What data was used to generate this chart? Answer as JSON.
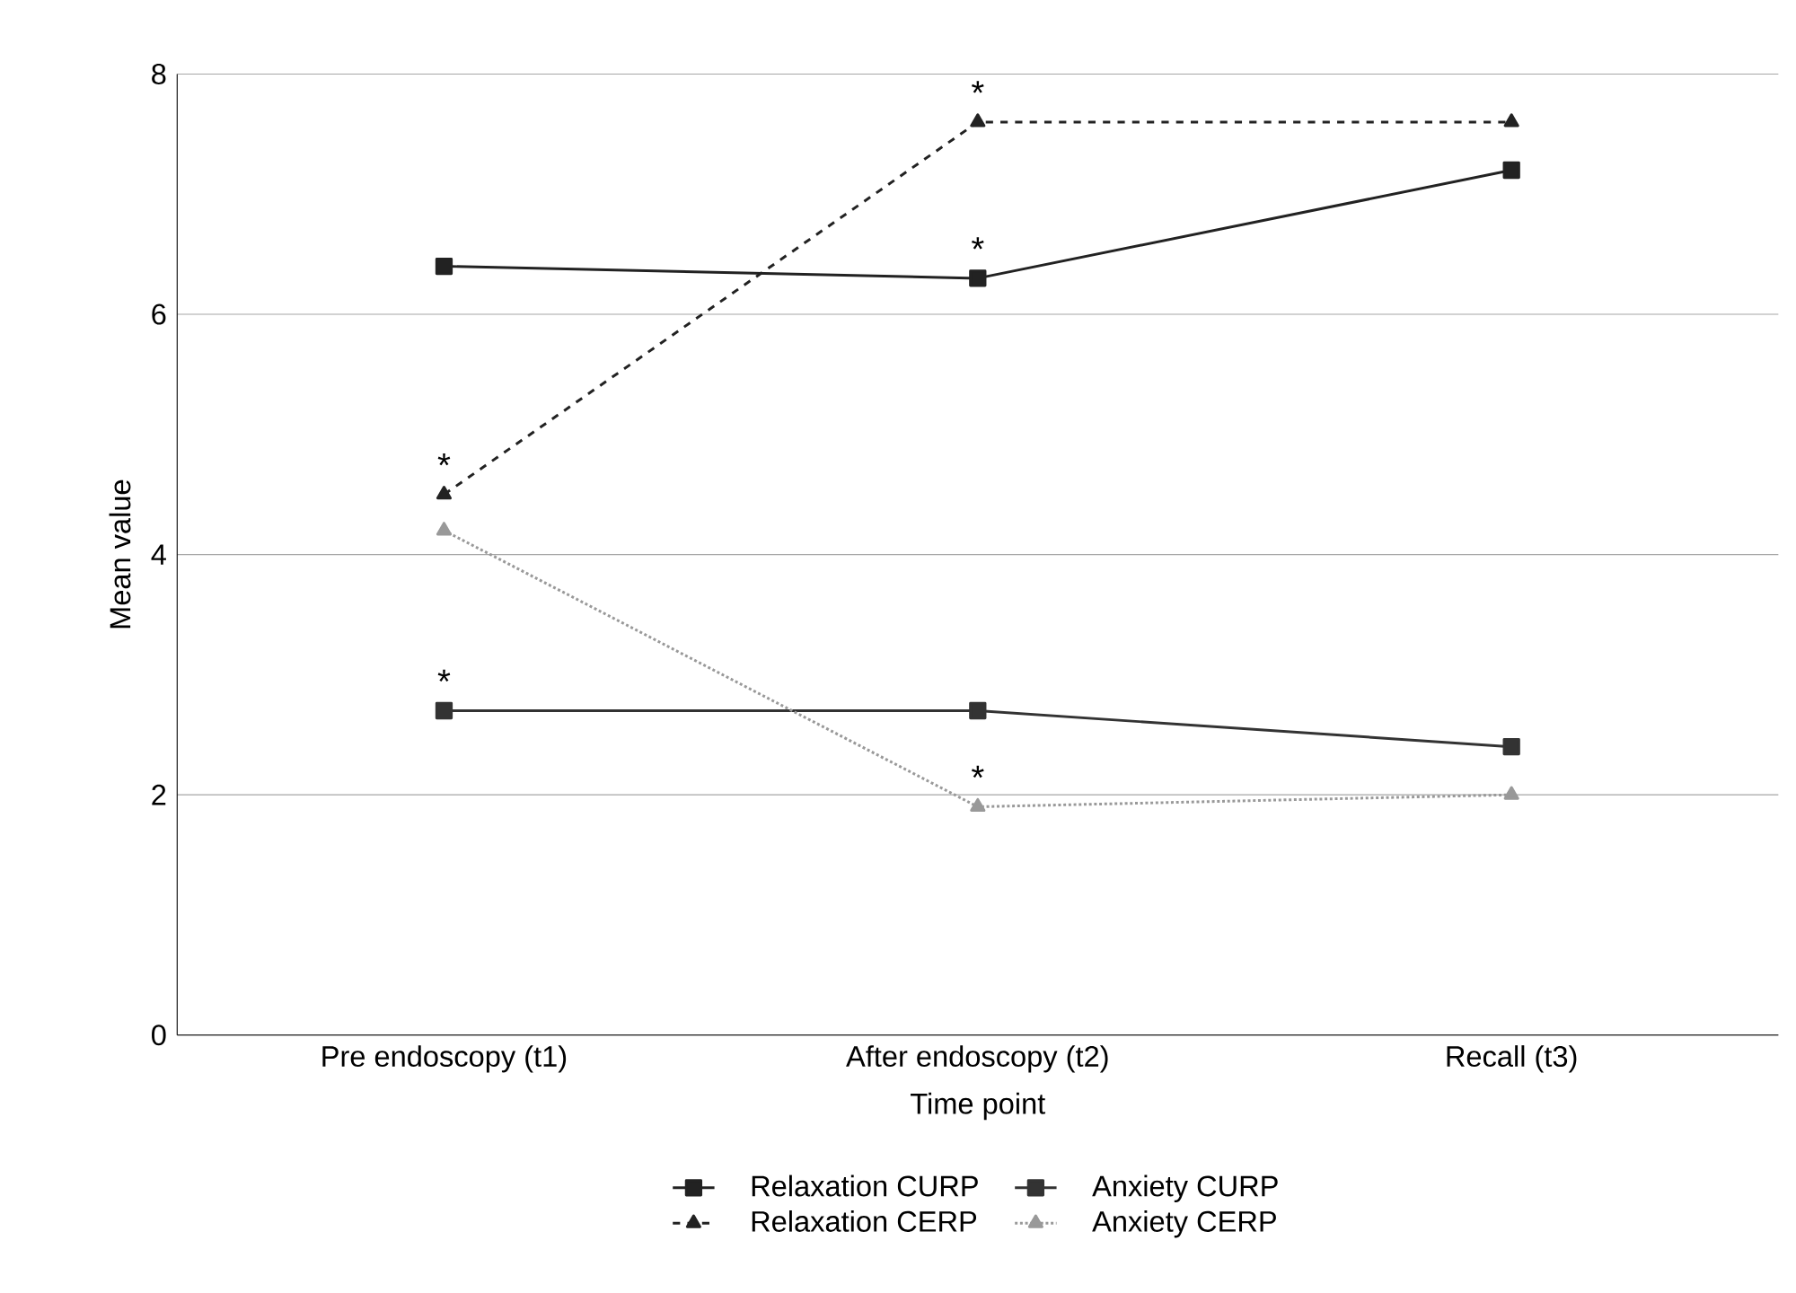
{
  "chart_data": {
    "type": "line",
    "xlabel": "Time point",
    "ylabel": "Mean value",
    "categories": [
      "Pre endoscopy (t1)",
      "After endoscopy (t2)",
      "Recall (t3)"
    ],
    "series": [
      {
        "name": "Relaxation CURP",
        "color": "#222222",
        "values": [
          6.4,
          6.3,
          7.2
        ],
        "marker": "square",
        "line_style": "solid"
      },
      {
        "name": "Relaxation CERP",
        "color": "#222222",
        "values": [
          4.5,
          7.6,
          7.6
        ],
        "marker": "triangle",
        "line_style": "dashed"
      },
      {
        "name": "Anxiety CURP",
        "color": "#333333",
        "values": [
          2.7,
          2.7,
          2.4
        ],
        "marker": "square",
        "line_style": "solid"
      },
      {
        "name": "Anxiety CERP",
        "color": "#999999",
        "values": [
          4.2,
          1.9,
          2.0
        ],
        "marker": "triangle",
        "line_style": "dotted"
      }
    ],
    "ylim": [
      0,
      8
    ],
    "yticks": [
      0,
      2,
      4,
      6,
      8
    ],
    "grid": "y",
    "legend": "bottom",
    "annotations": [
      {
        "text": "*",
        "x": "Pre endoscopy (t1)",
        "y": 4.5
      },
      {
        "text": "*",
        "x": "Pre endoscopy (t1)",
        "y": 2.7
      },
      {
        "text": "*",
        "x": "After endoscopy (t2)",
        "y": 7.6
      },
      {
        "text": "*",
        "x": "After endoscopy (t2)",
        "y": 6.3
      },
      {
        "text": "*",
        "x": "After endoscopy (t2)",
        "y": 1.9
      }
    ]
  }
}
